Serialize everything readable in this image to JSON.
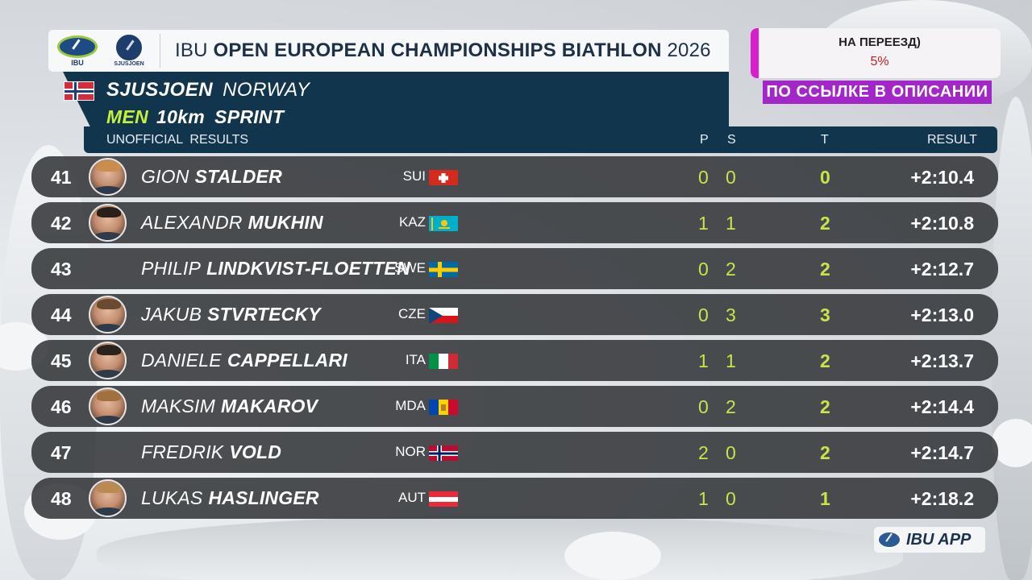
{
  "header": {
    "logo_left_caption": "IBU",
    "logo_right_caption": "SJUSJOEN",
    "title_prefix": "IBU",
    "title_main": "OPEN EUROPEAN CHAMPIONSHIPS BIATHLON",
    "title_year": "2026"
  },
  "event": {
    "venue": "SJUSJOEN",
    "country": "NORWAY",
    "gender": "MEN",
    "distance": "10km",
    "discipline": "SPRINT",
    "status": "UNOFFICIAL  RESULTS"
  },
  "columns": {
    "p": "P",
    "s": "S",
    "t": "T",
    "result": "RESULT"
  },
  "results": [
    {
      "rank": "41",
      "first": "GION",
      "last": "STALDER",
      "nat": "SUI",
      "p": "0",
      "s": "0",
      "t": "0",
      "result": "+2:10.4",
      "photo": true
    },
    {
      "rank": "42",
      "first": "ALEXANDR",
      "last": "MUKHIN",
      "nat": "KAZ",
      "p": "1",
      "s": "1",
      "t": "2",
      "result": "+2:10.8",
      "photo": true
    },
    {
      "rank": "43",
      "first": "PHILIP",
      "last": "LINDKVIST-FLOETTEN",
      "nat": "SWE",
      "p": "0",
      "s": "2",
      "t": "2",
      "result": "+2:12.7",
      "photo": false
    },
    {
      "rank": "44",
      "first": "JAKUB",
      "last": "STVRTECKY",
      "nat": "CZE",
      "p": "0",
      "s": "3",
      "t": "3",
      "result": "+2:13.0",
      "photo": true
    },
    {
      "rank": "45",
      "first": "DANIELE",
      "last": "CAPPELLARI",
      "nat": "ITA",
      "p": "1",
      "s": "1",
      "t": "2",
      "result": "+2:13.7",
      "photo": true
    },
    {
      "rank": "46",
      "first": "MAKSIM",
      "last": "MAKAROV",
      "nat": "MDA",
      "p": "0",
      "s": "2",
      "t": "2",
      "result": "+2:14.4",
      "photo": true
    },
    {
      "rank": "47",
      "first": "FREDRIK",
      "last": "VOLD",
      "nat": "NOR",
      "p": "2",
      "s": "0",
      "t": "2",
      "result": "+2:14.7",
      "photo": false
    },
    {
      "rank": "48",
      "first": "LUKAS",
      "last": "HASLINGER",
      "nat": "AUT",
      "p": "1",
      "s": "0",
      "t": "1",
      "result": "+2:18.2",
      "photo": true
    }
  ],
  "promo": {
    "line1": "НА ПЕРЕЕЗД)",
    "line2": "5%",
    "strip": "ПО ССЫЛКЕ В ОПИСАНИИ"
  },
  "app_badge": "IBU APP",
  "colors": {
    "accent_lime": "#c6f03a",
    "panel_navy": "#12354e",
    "row_bg": "#303236",
    "promo_magenta": "#d81fd0"
  }
}
